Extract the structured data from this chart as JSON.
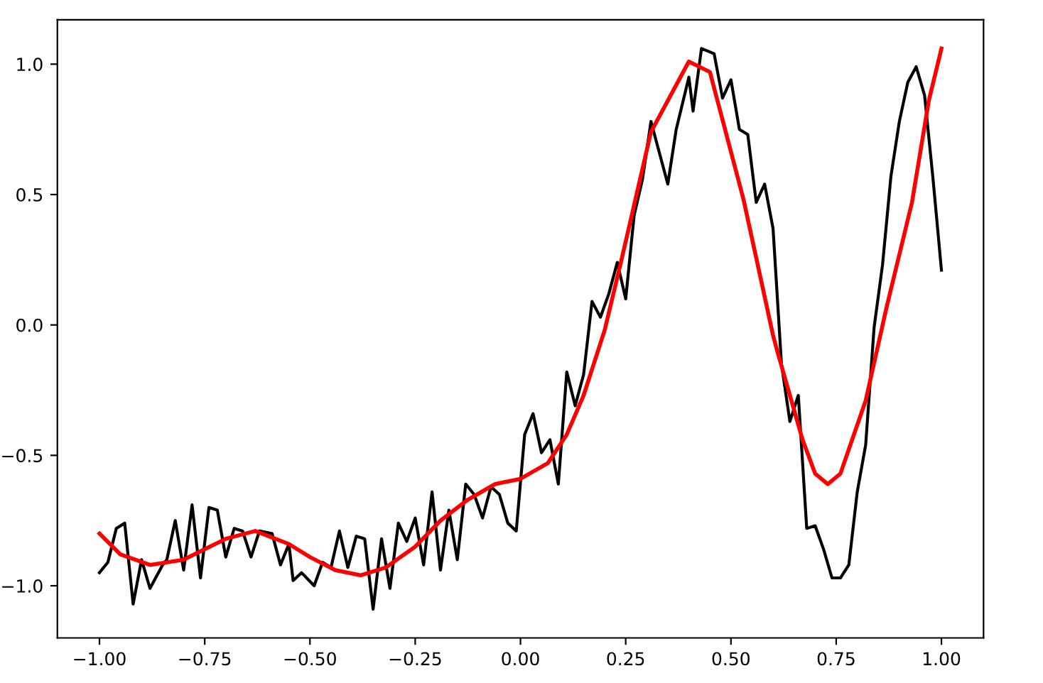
{
  "chart_data": {
    "type": "line",
    "xlim": [
      -1.1,
      1.1
    ],
    "ylim": [
      -1.2,
      1.17
    ],
    "xticks": [
      {
        "value": -1.0,
        "label": "−1.00"
      },
      {
        "value": -0.75,
        "label": "−0.75"
      },
      {
        "value": -0.5,
        "label": "−0.50"
      },
      {
        "value": -0.25,
        "label": "−0.25"
      },
      {
        "value": 0.0,
        "label": "0.00"
      },
      {
        "value": 0.25,
        "label": "0.25"
      },
      {
        "value": 0.5,
        "label": "0.50"
      },
      {
        "value": 0.75,
        "label": "0.75"
      },
      {
        "value": 1.0,
        "label": "1.00"
      }
    ],
    "yticks": [
      {
        "value": -1.0,
        "label": "−1.0"
      },
      {
        "value": -0.5,
        "label": "−0.5"
      },
      {
        "value": 0.0,
        "label": "0.0"
      },
      {
        "value": 0.5,
        "label": "0.5"
      },
      {
        "value": 1.0,
        "label": "1.0"
      }
    ],
    "grid": false,
    "marker": "none",
    "line_style": "solid",
    "series": [
      {
        "color": "#000000",
        "x": [
          -1.0,
          -0.98,
          -0.96,
          -0.94,
          -0.92,
          -0.9,
          -0.88,
          -0.85,
          -0.84,
          -0.82,
          -0.8,
          -0.78,
          -0.76,
          -0.74,
          -0.72,
          -0.7,
          -0.68,
          -0.66,
          -0.64,
          -0.62,
          -0.59,
          -0.57,
          -0.55,
          -0.54,
          -0.52,
          -0.49,
          -0.47,
          -0.45,
          -0.43,
          -0.41,
          -0.39,
          -0.37,
          -0.35,
          -0.33,
          -0.31,
          -0.29,
          -0.27,
          -0.25,
          -0.23,
          -0.21,
          -0.19,
          -0.17,
          -0.15,
          -0.13,
          -0.11,
          -0.09,
          -0.07,
          -0.05,
          -0.03,
          -0.01,
          0.01,
          0.03,
          0.05,
          0.07,
          0.09,
          0.11,
          0.13,
          0.15,
          0.17,
          0.19,
          0.21,
          0.23,
          0.25,
          0.27,
          0.29,
          0.31,
          0.33,
          0.35,
          0.37,
          0.4,
          0.41,
          0.43,
          0.46,
          0.48,
          0.5,
          0.52,
          0.54,
          0.56,
          0.58,
          0.6,
          0.62,
          0.64,
          0.66,
          0.68,
          0.7,
          0.72,
          0.74,
          0.76,
          0.78,
          0.8,
          0.82,
          0.84,
          0.86,
          0.88,
          0.9,
          0.92,
          0.94,
          0.96,
          0.98,
          1.0
        ],
        "values": [
          -0.95,
          -0.91,
          -0.78,
          -0.76,
          -1.07,
          -0.9,
          -1.01,
          -0.92,
          -0.9,
          -0.75,
          -0.94,
          -0.69,
          -0.97,
          -0.7,
          -0.71,
          -0.89,
          -0.78,
          -0.79,
          -0.89,
          -0.79,
          -0.8,
          -0.92,
          -0.84,
          -0.98,
          -0.95,
          -1.0,
          -0.91,
          -0.93,
          -0.79,
          -0.93,
          -0.81,
          -0.82,
          -1.09,
          -0.82,
          -1.01,
          -0.76,
          -0.83,
          -0.74,
          -0.92,
          -0.64,
          -0.94,
          -0.71,
          -0.9,
          -0.61,
          -0.65,
          -0.74,
          -0.62,
          -0.65,
          -0.76,
          -0.79,
          -0.42,
          -0.34,
          -0.49,
          -0.44,
          -0.61,
          -0.18,
          -0.31,
          -0.19,
          0.09,
          0.03,
          0.12,
          0.24,
          0.1,
          0.42,
          0.56,
          0.78,
          0.66,
          0.54,
          0.75,
          0.95,
          0.82,
          1.06,
          1.04,
          0.87,
          0.94,
          0.75,
          0.73,
          0.47,
          0.54,
          0.37,
          -0.15,
          -0.37,
          -0.27,
          -0.78,
          -0.77,
          -0.86,
          -0.97,
          -0.97,
          -0.92,
          -0.64,
          -0.46,
          -0.01,
          0.23,
          0.57,
          0.78,
          0.93,
          0.99,
          0.88,
          0.56,
          0.21
        ]
      },
      {
        "color": "#ff0000",
        "x": [
          -1.0,
          -0.95,
          -0.88,
          -0.8,
          -0.75,
          -0.7,
          -0.63,
          -0.55,
          -0.5,
          -0.44,
          -0.38,
          -0.32,
          -0.25,
          -0.19,
          -0.125,
          -0.06,
          0.0,
          0.065,
          0.11,
          0.15,
          0.2,
          0.24,
          0.31,
          0.4,
          0.45,
          0.53,
          0.6,
          0.61,
          0.67,
          0.7,
          0.73,
          0.76,
          0.82,
          0.87,
          0.93,
          0.97,
          1.0
        ],
        "values": [
          -0.8,
          -0.88,
          -0.92,
          -0.9,
          -0.86,
          -0.82,
          -0.79,
          -0.84,
          -0.89,
          -0.94,
          -0.96,
          -0.93,
          -0.85,
          -0.75,
          -0.67,
          -0.61,
          -0.59,
          -0.53,
          -0.42,
          -0.27,
          -0.02,
          0.25,
          0.74,
          1.01,
          0.97,
          0.48,
          -0.04,
          -0.1,
          -0.44,
          -0.57,
          -0.61,
          -0.57,
          -0.29,
          0.07,
          0.47,
          0.86,
          1.06
        ]
      }
    ]
  }
}
